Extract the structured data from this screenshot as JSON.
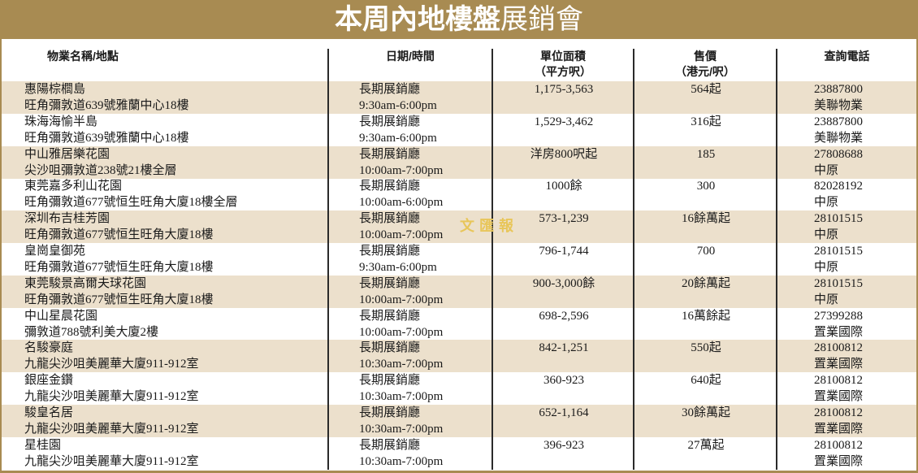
{
  "title": {
    "bold": "本周內地樓盤",
    "normal": "展銷會"
  },
  "watermark": "文匯報",
  "colors": {
    "banner": "#a88b52",
    "row_shade": "#ece0cc"
  },
  "headers": {
    "name": "物業名稱/地點",
    "date": "日期/時間",
    "area_1": "單位面積",
    "area_2": "（平方呎）",
    "price_1": "售價",
    "price_2": "（港元/呎）",
    "tel": "查詢電話"
  },
  "rows": [
    {
      "name": "惠陽棕櫚島",
      "addr": "旺角彌敦道639號雅蘭中心18樓",
      "date": "長期展銷廳",
      "time": "9:30am-6:00pm",
      "area": "1,175-3,563",
      "price": "564起",
      "tel": "23887800",
      "agent": "美聯物業"
    },
    {
      "name": "珠海海愉半島",
      "addr": "旺角彌敦道639號雅蘭中心18樓",
      "date": "長期展銷廳",
      "time": "9:30am-6:00pm",
      "area": "1,529-3,462",
      "price": "316起",
      "tel": "23887800",
      "agent": "美聯物業"
    },
    {
      "name": "中山雅居樂花園",
      "addr": "尖沙咀彌敦道238號21樓全層",
      "date": "長期展銷廳",
      "time": "10:00am-7:00pm",
      "area": "洋房800呎起",
      "price": "185",
      "tel": "27808688",
      "agent": "中原"
    },
    {
      "name": "東莞嘉多利山花園",
      "addr": "旺角彌敦道677號恒生旺角大廈18樓全層",
      "date": "長期展銷廳",
      "time": "10:00am-6:00pm",
      "area": "1000餘",
      "price": "300",
      "tel": "82028192",
      "agent": "中原"
    },
    {
      "name": "深圳布吉桂芳園",
      "addr": "旺角彌敦道677號恒生旺角大廈18樓",
      "date": "長期展銷廳",
      "time": "10:00am-7:00pm",
      "area": "573-1,239",
      "price": "16餘萬起",
      "tel": "28101515",
      "agent": "中原"
    },
    {
      "name": "皇崗皇御苑",
      "addr": "旺角彌敦道677號恒生旺角大廈18樓",
      "date": "長期展銷廳",
      "time": "9:30am-6:00pm",
      "area": "796-1,744",
      "price": "700",
      "tel": "28101515",
      "agent": "中原"
    },
    {
      "name": "東莞駿景高爾夫球花園",
      "addr": "旺角彌敦道677號恒生旺角大廈18樓",
      "date": "長期展銷廳",
      "time": "10:00am-7:00pm",
      "area": "900-3,000餘",
      "price": "20餘萬起",
      "tel": "28101515",
      "agent": "中原"
    },
    {
      "name": "中山星晨花園",
      "addr": "彌敦道788號利美大廈2樓",
      "date": "長期展銷廳",
      "time": "10:00am-7:00pm",
      "area": "698-2,596",
      "price": "16萬餘起",
      "tel": "27399288",
      "agent": "置業國際"
    },
    {
      "name": "名駿豪庭",
      "addr": "九龍尖沙咀美麗華大廈911-912室",
      "date": "長期展銷廳",
      "time": "10:30am-7:00pm",
      "area": "842-1,251",
      "price": "550起",
      "tel": "28100812",
      "agent": "置業國際"
    },
    {
      "name": "銀座金鑽",
      "addr": "九龍尖沙咀美麗華大廈911-912室",
      "date": "長期展銷廳",
      "time": "10:30am-7:00pm",
      "area": "360-923",
      "price": "640起",
      "tel": "28100812",
      "agent": "置業國際"
    },
    {
      "name": "駿皇名居",
      "addr": "九龍尖沙咀美麗華大廈911-912室",
      "date": "長期展銷廳",
      "time": "10:30am-7:00pm",
      "area": "652-1,164",
      "price": "30餘萬起",
      "tel": "28100812",
      "agent": "置業國際"
    },
    {
      "name": "星桂園",
      "addr": "九龍尖沙咀美麗華大廈911-912室",
      "date": "長期展銷廳",
      "time": "10:30am-7:00pm",
      "area": "396-923",
      "price": "27萬起",
      "tel": "28100812",
      "agent": "置業國際"
    }
  ]
}
